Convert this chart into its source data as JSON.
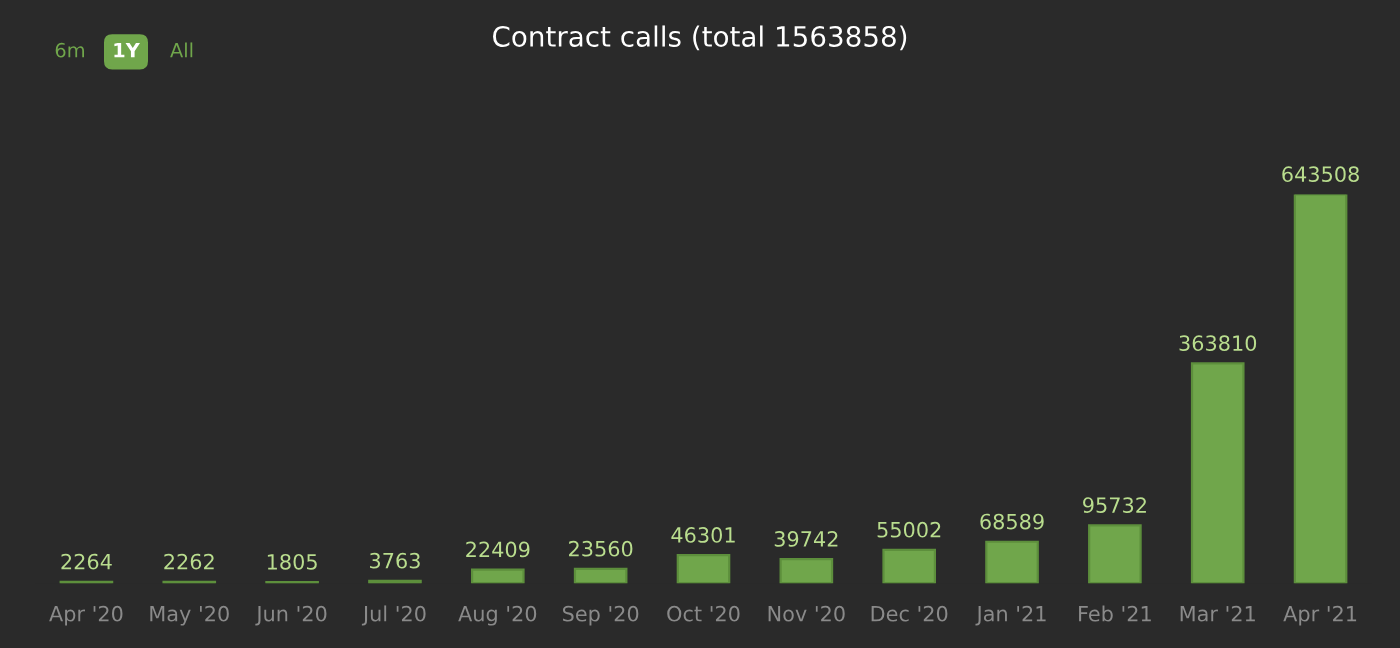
{
  "chart_data": {
    "type": "bar",
    "title": "Contract calls (total 1563858)",
    "categories": [
      "Apr '20",
      "May '20",
      "Jun '20",
      "Jul '20",
      "Aug '20",
      "Sep '20",
      "Oct '20",
      "Nov '20",
      "Dec '20",
      "Jan '21",
      "Feb '21",
      "Mar '21",
      "Apr '21"
    ],
    "values": [
      2264,
      2262,
      1805,
      3763,
      22409,
      23560,
      46301,
      39742,
      55002,
      68589,
      95732,
      363810,
      643508
    ],
    "color": "#70a64b",
    "data_labels": true,
    "annotations": [
      "6m",
      "1Y",
      "All"
    ],
    "grid": false,
    "legend": false
  }
}
